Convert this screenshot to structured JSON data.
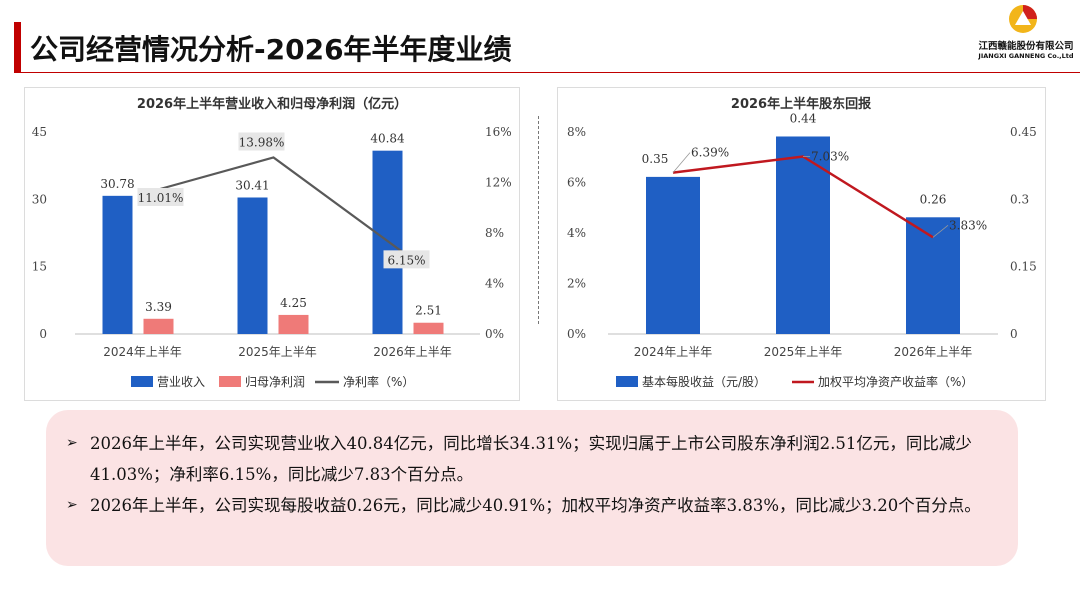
{
  "header": {
    "title": "公司经营情况分析-2026年半年度业绩",
    "company_cn": "江西赣能股份有限公司",
    "company_en": "JIANGXI GANNENG Co.,Ltd"
  },
  "colors": {
    "accent": "#c00000",
    "bar_blue": "#1f5fc4",
    "bar_pink": "#ef7a78",
    "line_gray": "#595959",
    "line_red": "#c0181f",
    "summary_bg": "#fbe3e4"
  },
  "chart_data": [
    {
      "type": "bar",
      "title": "2026年上半年营业收入和归母净利润（亿元）",
      "categories": [
        "2024年上半年",
        "2025年上半年",
        "2026年上半年"
      ],
      "series": [
        {
          "name": "营业收入",
          "type": "bar",
          "axis": "left",
          "values": [
            30.78,
            30.41,
            40.84
          ],
          "labels": [
            "30.78",
            "30.41",
            "40.84"
          ]
        },
        {
          "name": "归母净利润",
          "type": "bar",
          "axis": "left",
          "values": [
            3.39,
            4.25,
            2.51
          ],
          "labels": [
            "3.39",
            "4.25",
            "2.51"
          ]
        },
        {
          "name": "净利率（%）",
          "type": "line",
          "axis": "right",
          "values": [
            11.01,
            13.98,
            6.15
          ],
          "labels": [
            "11.01%",
            "13.98%",
            "6.15%"
          ]
        }
      ],
      "left_axis": {
        "ylim": [
          0,
          45
        ],
        "ticks": [
          0,
          15,
          30,
          45
        ],
        "tick_labels": [
          "0",
          "15",
          "30",
          "45"
        ]
      },
      "right_axis": {
        "ylim": [
          0,
          16
        ],
        "ticks": [
          0,
          4,
          8,
          12,
          16
        ],
        "tick_labels": [
          "0%",
          "4%",
          "8%",
          "12%",
          "16%"
        ]
      },
      "grid": false,
      "legend": "bottom"
    },
    {
      "type": "bar",
      "title": "2026年上半年股东回报",
      "categories": [
        "2024年上半年",
        "2025年上半年",
        "2026年上半年"
      ],
      "series": [
        {
          "name": "基本每股收益（元/股）",
          "type": "bar",
          "axis": "right",
          "values": [
            0.35,
            0.44,
            0.26
          ],
          "labels": [
            "0.35",
            "0.44",
            "0.26"
          ]
        },
        {
          "name": "加权平均净资产收益率（%）",
          "type": "line",
          "axis": "left",
          "values": [
            6.39,
            7.03,
            3.83
          ],
          "labels": [
            "6.39%",
            "7.03%",
            "3.83%"
          ]
        }
      ],
      "left_axis": {
        "ylim": [
          0,
          8
        ],
        "ticks": [
          0,
          2,
          4,
          6,
          8
        ],
        "tick_labels": [
          "0%",
          "2%",
          "4%",
          "6%",
          "8%"
        ]
      },
      "right_axis": {
        "ylim": [
          0,
          0.45
        ],
        "ticks": [
          0,
          0.15,
          0.3,
          0.45
        ],
        "tick_labels": [
          "0",
          "0.15",
          "0.3",
          "0.45"
        ]
      },
      "grid": false,
      "legend": "bottom"
    }
  ],
  "summary": {
    "bullets": [
      {
        "arrow": "➢",
        "text": "2026年上半年，公司实现营业收入40.84亿元，同比增长34.31%；实现归属于上市公司股东净利润2.51亿元，同比减少41.03%；净利率6.15%，同比减少7.83个百分点。"
      },
      {
        "arrow": "➢",
        "text": "2026年上半年，公司实现每股收益0.26元，同比减少40.91%；加权平均净资产收益率3.83%，同比减少3.20个百分点。"
      }
    ]
  }
}
